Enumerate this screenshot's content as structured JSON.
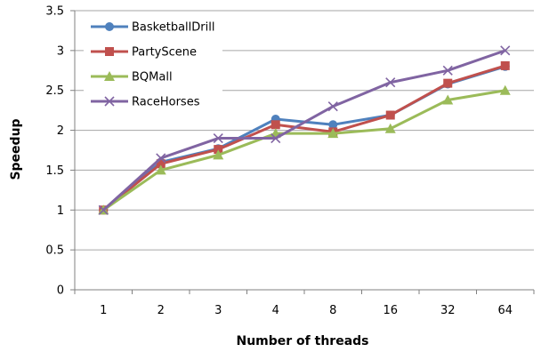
{
  "chart_data": {
    "type": "line",
    "title": "",
    "xlabel": "Number of threads",
    "ylabel": "Speedup",
    "categories": [
      "1",
      "2",
      "3",
      "4",
      "8",
      "16",
      "32",
      "64"
    ],
    "ylim": [
      0,
      3.5
    ],
    "yticks": [
      "0",
      "0.5",
      "1",
      "1.5",
      "2",
      "2.5",
      "3",
      "3.5"
    ],
    "grid": "horizontal",
    "legend_position": "top-left",
    "series": [
      {
        "name": "BasketballDrill",
        "color": "#4f81bd",
        "marker": "circle",
        "values": [
          1.0,
          1.6,
          1.77,
          2.14,
          2.07,
          2.19,
          2.58,
          2.8
        ]
      },
      {
        "name": "PartyScene",
        "color": "#c0504d",
        "marker": "square",
        "values": [
          1.0,
          1.58,
          1.76,
          2.07,
          1.98,
          2.19,
          2.59,
          2.81
        ]
      },
      {
        "name": "BQMall",
        "color": "#9bbb59",
        "marker": "triangle",
        "values": [
          1.0,
          1.5,
          1.69,
          1.96,
          1.96,
          2.02,
          2.38,
          2.5
        ]
      },
      {
        "name": "RaceHorses",
        "color": "#8064a2",
        "marker": "x",
        "values": [
          1.0,
          1.65,
          1.9,
          1.9,
          2.3,
          2.6,
          2.75,
          3.0
        ]
      }
    ]
  }
}
